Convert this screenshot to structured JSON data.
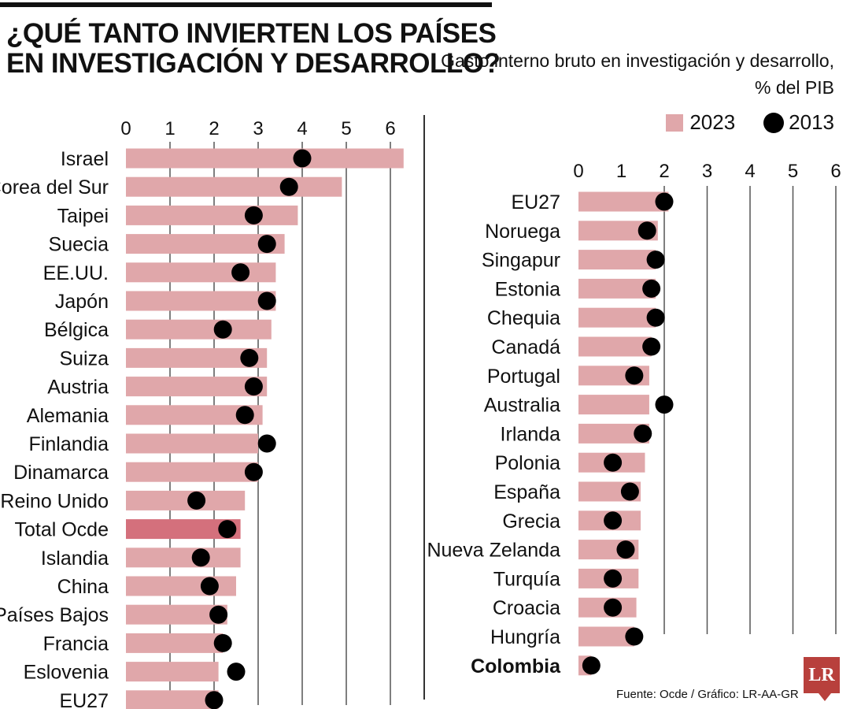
{
  "title": "¿QUÉ TANTO INVIERTEN LOS PAÍSES EN INVESTIGACIÓN Y DESARROLLO?",
  "subtitle": "Gasto interno bruto en investigación y desarrollo, % del PIB",
  "legend": {
    "label_2023": "2023",
    "label_2013": "2013"
  },
  "source": "Fuente: Ocde / Gráfico: LR-AA-GR",
  "logo": "LR",
  "colors": {
    "bar_2023": "#e0a7aa",
    "bar_highlight": "#d4707c",
    "dot_2013": "#000000",
    "grid": "#555555"
  },
  "chart_data": [
    {
      "type": "bar",
      "ticks": [
        0,
        1,
        2,
        3,
        4,
        5,
        6
      ],
      "xlim": [
        0,
        6
      ],
      "highlight": "Total Ocde",
      "categories": [
        "Israel",
        "Corea del Sur",
        "Taipei",
        "Suecia",
        "EE.UU.",
        "Japón",
        "Bélgica",
        "Suiza",
        "Austria",
        "Alemania",
        "Finlandia",
        "Dinamarca",
        "Reino Unido",
        "Total Ocde",
        "Islandia",
        "China",
        "Países Bajos",
        "Francia",
        "Eslovenia",
        "EU27"
      ],
      "series": [
        {
          "name": "2023",
          "values": [
            6.3,
            4.9,
            3.9,
            3.6,
            3.4,
            3.4,
            3.3,
            3.2,
            3.2,
            3.1,
            3.0,
            3.0,
            2.7,
            2.6,
            2.6,
            2.5,
            2.3,
            2.2,
            2.1,
            2.1
          ]
        },
        {
          "name": "2013",
          "values": [
            4.0,
            3.7,
            2.9,
            3.2,
            2.6,
            3.2,
            2.2,
            2.8,
            2.9,
            2.7,
            3.2,
            2.9,
            1.6,
            2.3,
            1.7,
            1.9,
            2.1,
            2.2,
            2.5,
            2.0
          ]
        }
      ]
    },
    {
      "type": "bar",
      "ticks": [
        0,
        1,
        2,
        3,
        4,
        5,
        6
      ],
      "xlim": [
        0,
        6
      ],
      "bold": "Colombia",
      "categories": [
        "EU27",
        "Noruega",
        "Singapur",
        "Estonia",
        "Chequia",
        "Canadá",
        "Portugal",
        "Australia",
        "Irlanda",
        "Polonia",
        "España",
        "Grecia",
        "Nueva Zelanda",
        "Turquía",
        "Croacia",
        "Hungría",
        "Colombia"
      ],
      "series": [
        {
          "name": "2023",
          "values": [
            2.1,
            1.85,
            1.8,
            1.8,
            1.8,
            1.7,
            1.65,
            1.65,
            1.65,
            1.55,
            1.45,
            1.45,
            1.4,
            1.4,
            1.35,
            1.3,
            0.3
          ]
        },
        {
          "name": "2013",
          "values": [
            2.0,
            1.6,
            1.8,
            1.7,
            1.8,
            1.7,
            1.3,
            2.0,
            1.5,
            0.8,
            1.2,
            0.8,
            1.1,
            0.8,
            0.8,
            1.3,
            0.3
          ]
        }
      ]
    }
  ]
}
